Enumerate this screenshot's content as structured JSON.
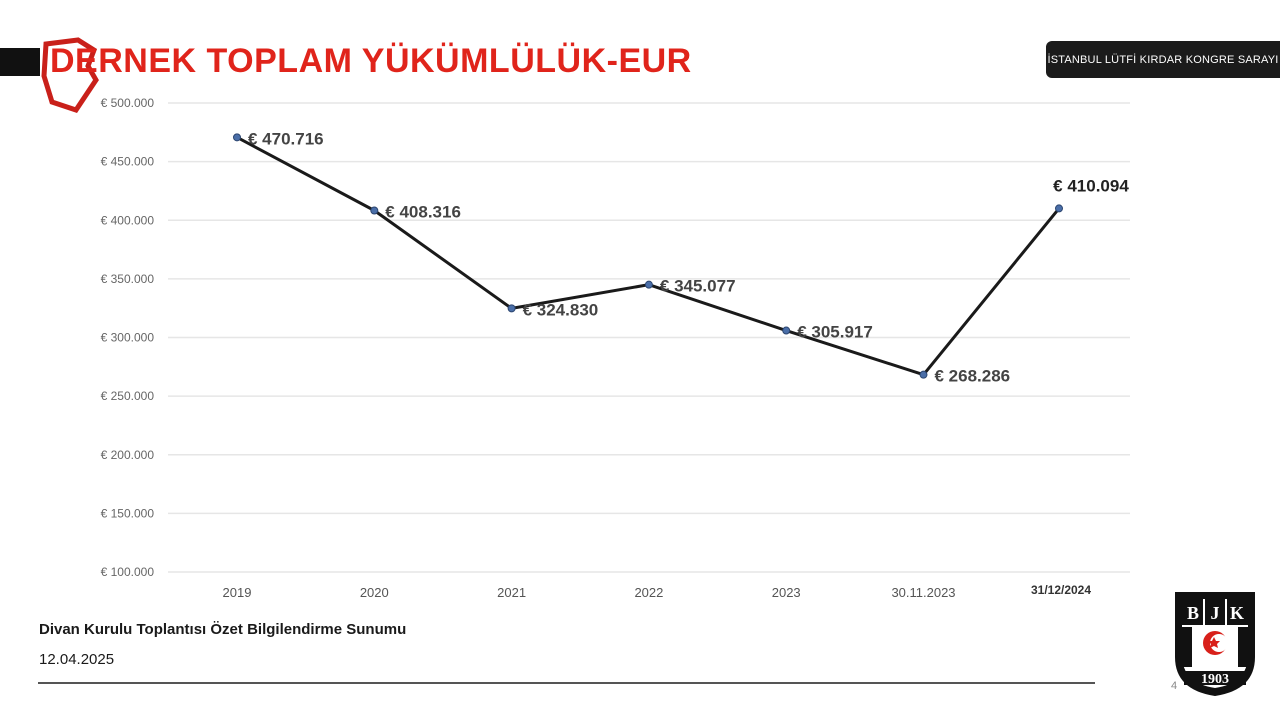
{
  "header": {
    "title": "DERNEK TOPLAM YÜKÜMLÜLÜK-EUR",
    "venue": "İSTANBUL LÜTFİ KIRDAR KONGRE SARAYI"
  },
  "footer": {
    "title": "Divan Kurulu Toplantısı Özet Bilgilendirme Sunumu",
    "date": "12.04.2025",
    "page_number": "4"
  },
  "crest": {
    "letters": "BJK",
    "year": "1903"
  },
  "colors": {
    "title": "#e0241b",
    "line": "#1a1a1a",
    "marker": "#4a6ea8",
    "grid": "#e6e6e6",
    "venue_bg": "#1b1b1b"
  },
  "chart_data": {
    "type": "line",
    "title": "",
    "xlabel": "",
    "ylabel": "",
    "categories": [
      "2019",
      "2020",
      "2021",
      "2022",
      "2023",
      "30.11.2023",
      "31/12/2024"
    ],
    "series": [
      {
        "values": [
          470716,
          408316,
          324830,
          345077,
          305917,
          268286,
          410094
        ],
        "labels": [
          "€ 470.716",
          "€ 408.316",
          "€ 324.830",
          "€ 345.077",
          "€ 305.917",
          "€ 268.286",
          "€ 410.094"
        ]
      }
    ],
    "ylim": [
      100000,
      500000
    ],
    "yticks": [
      100000,
      150000,
      200000,
      250000,
      300000,
      350000,
      400000,
      450000,
      500000
    ],
    "ytick_labels": [
      "€ 100.000",
      "€ 150.000",
      "€ 200.000",
      "€ 250.000",
      "€ 300.000",
      "€ 350.000",
      "€ 400.000",
      "€ 450.000",
      "€ 500.000"
    ],
    "grid": true,
    "legend": "none"
  }
}
